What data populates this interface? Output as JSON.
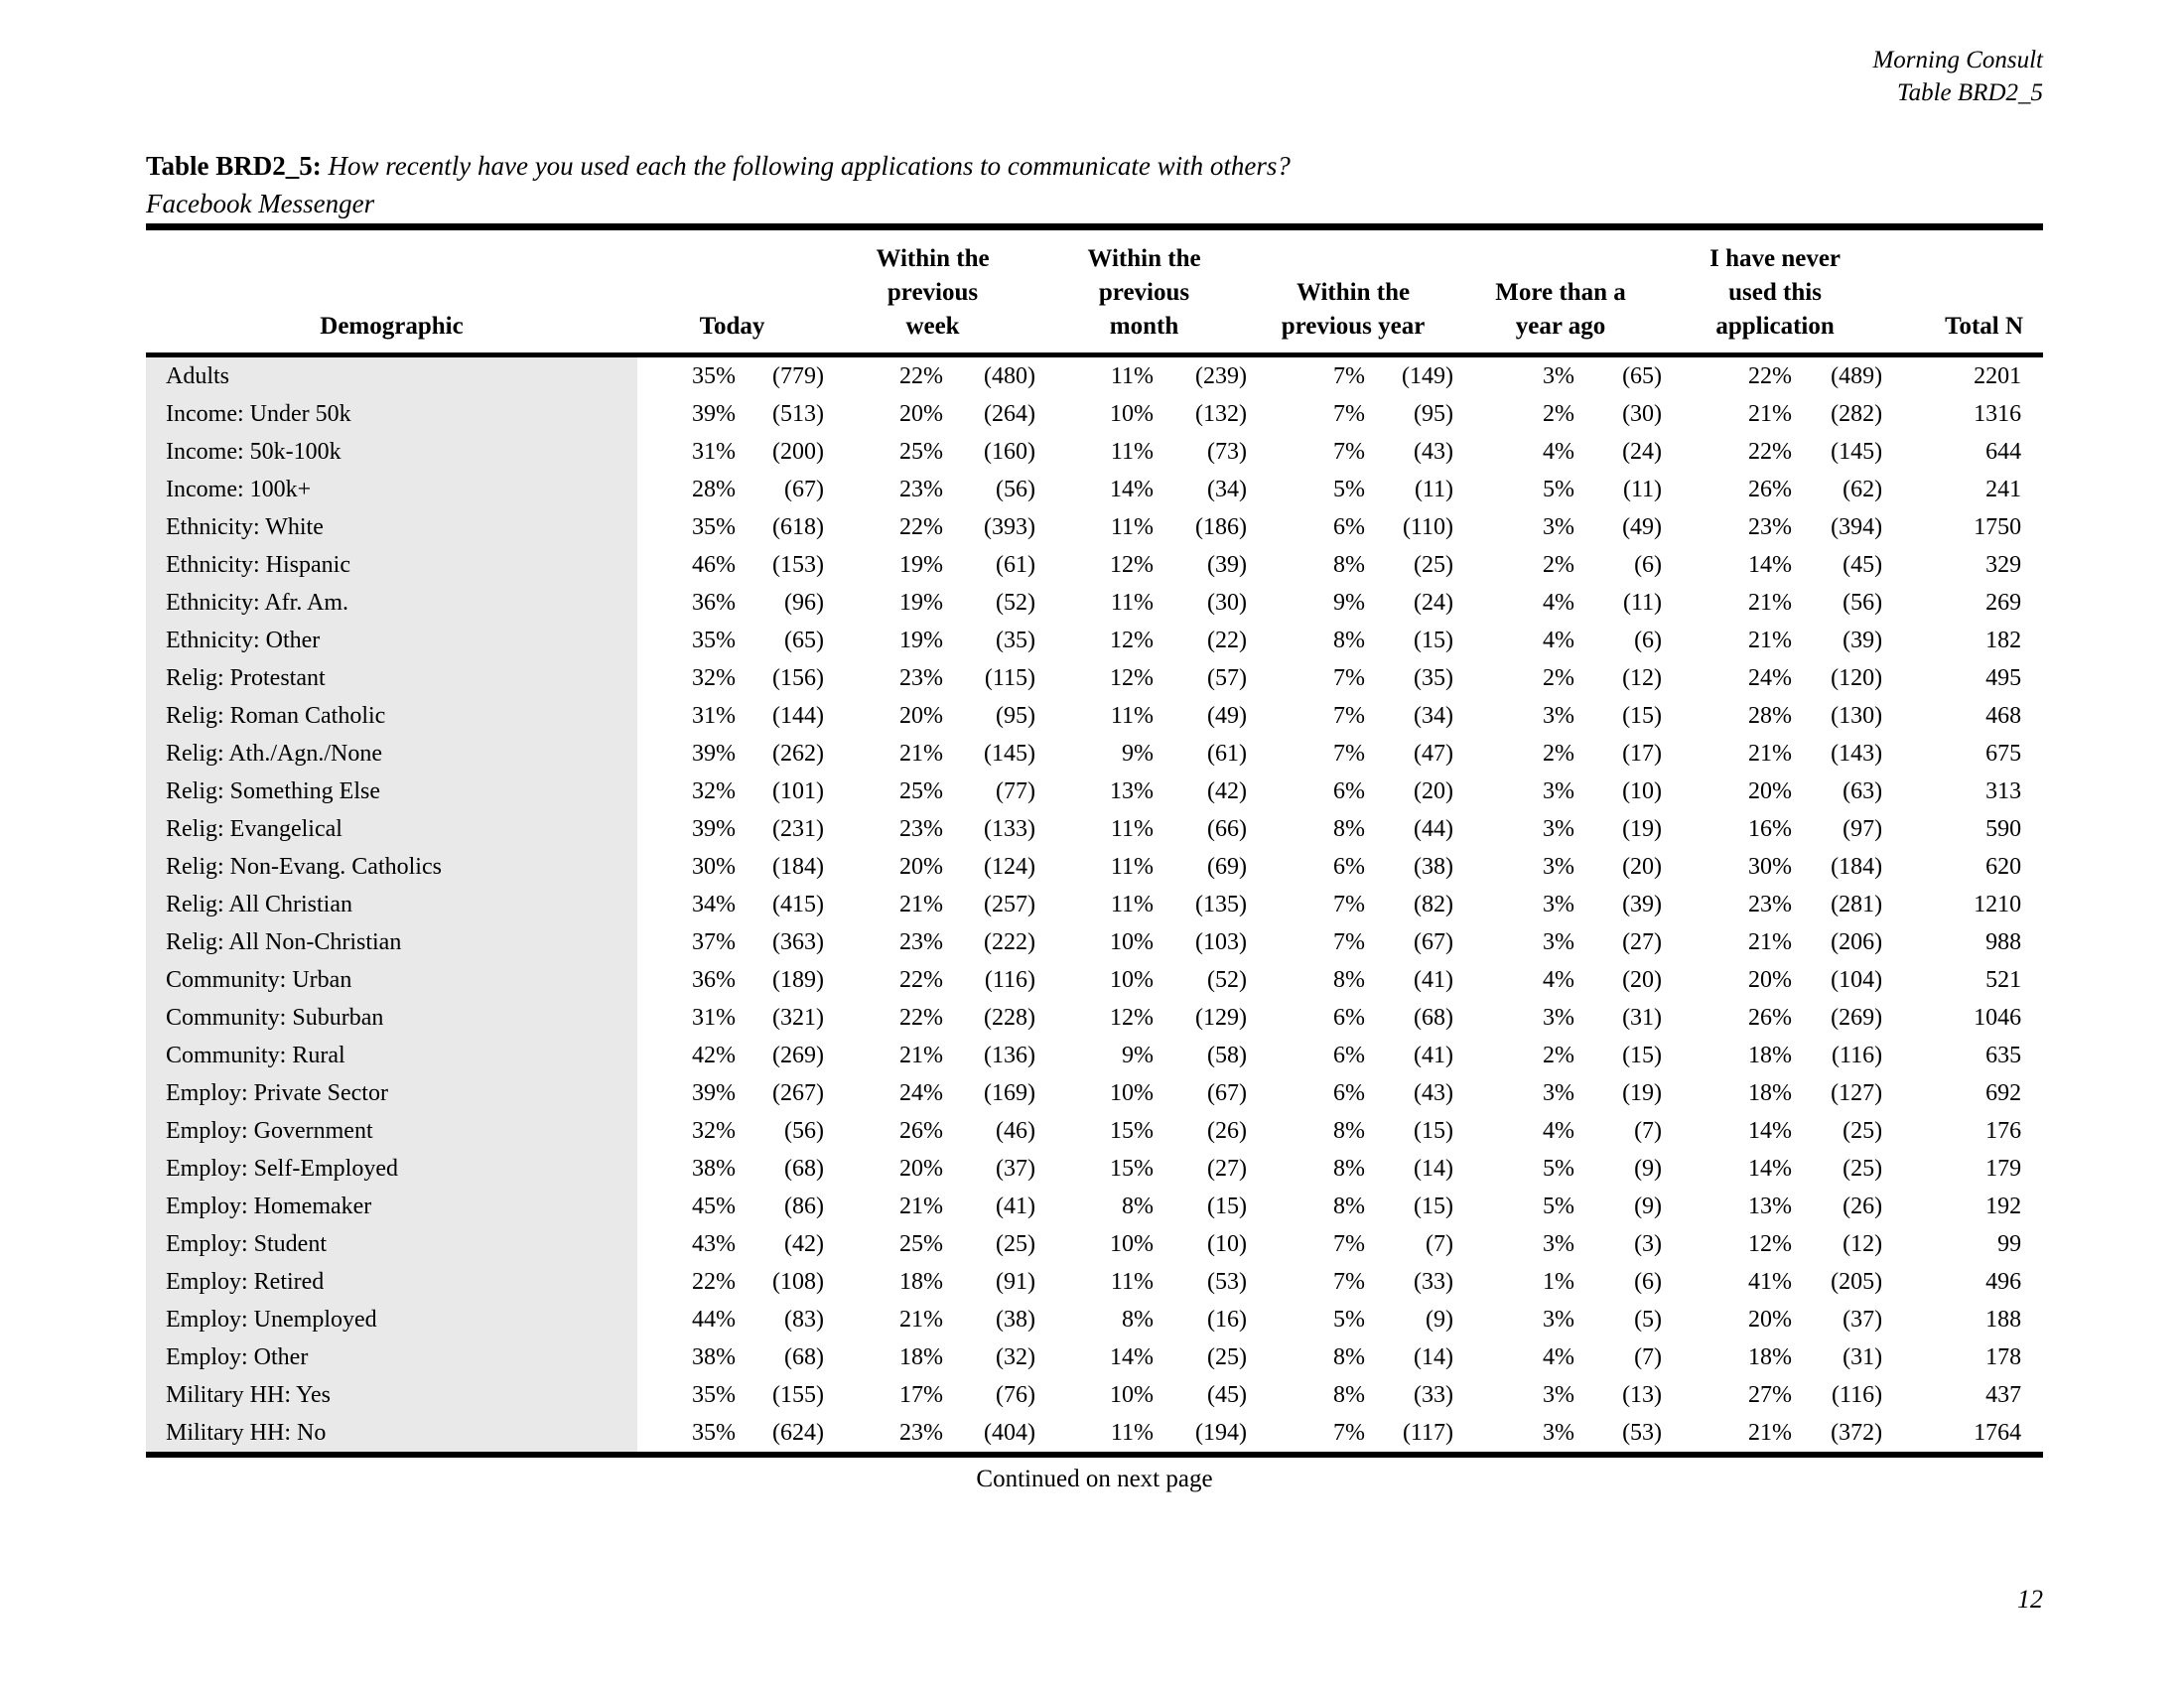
{
  "page": {
    "publisher": "Morning Consult",
    "table_ref": "Table BRD2_5",
    "title_prefix": "Table BRD2_5:",
    "title_question": "How recently have you used each the following applications to communicate with others?",
    "title_subject": "Facebook Messenger",
    "continued_note": "Continued on next page",
    "page_number": "12"
  },
  "colors": {
    "stripe": "#e9e9e9",
    "rule": "#000000",
    "text": "#000000"
  },
  "table": {
    "header": {
      "demographic": "Demographic",
      "today": "Today",
      "week": "Within the\nprevious\nweek",
      "month": "Within the\nprevious\nmonth",
      "year": "Within the\nprevious year",
      "more": "More than a\nyear ago",
      "never": "I have never\nused this\napplication",
      "total": "Total N"
    },
    "rows": [
      {
        "label": "Adults",
        "values": [
          "35%",
          "(779)",
          "22%",
          "(480)",
          "11%",
          "(239)",
          "7%",
          "(149)",
          "3%",
          "(65)",
          "22%",
          "(489)",
          "2201"
        ]
      },
      {
        "label": "Income: Under 50k",
        "values": [
          "39%",
          "(513)",
          "20%",
          "(264)",
          "10%",
          "(132)",
          "7%",
          "(95)",
          "2%",
          "(30)",
          "21%",
          "(282)",
          "1316"
        ]
      },
      {
        "label": "Income: 50k-100k",
        "values": [
          "31%",
          "(200)",
          "25%",
          "(160)",
          "11%",
          "(73)",
          "7%",
          "(43)",
          "4%",
          "(24)",
          "22%",
          "(145)",
          "644"
        ]
      },
      {
        "label": "Income: 100k+",
        "values": [
          "28%",
          "(67)",
          "23%",
          "(56)",
          "14%",
          "(34)",
          "5%",
          "(11)",
          "5%",
          "(11)",
          "26%",
          "(62)",
          "241"
        ]
      },
      {
        "label": "Ethnicity: White",
        "values": [
          "35%",
          "(618)",
          "22%",
          "(393)",
          "11%",
          "(186)",
          "6%",
          "(110)",
          "3%",
          "(49)",
          "23%",
          "(394)",
          "1750"
        ]
      },
      {
        "label": "Ethnicity: Hispanic",
        "values": [
          "46%",
          "(153)",
          "19%",
          "(61)",
          "12%",
          "(39)",
          "8%",
          "(25)",
          "2%",
          "(6)",
          "14%",
          "(45)",
          "329"
        ]
      },
      {
        "label": "Ethnicity: Afr. Am.",
        "values": [
          "36%",
          "(96)",
          "19%",
          "(52)",
          "11%",
          "(30)",
          "9%",
          "(24)",
          "4%",
          "(11)",
          "21%",
          "(56)",
          "269"
        ]
      },
      {
        "label": "Ethnicity: Other",
        "values": [
          "35%",
          "(65)",
          "19%",
          "(35)",
          "12%",
          "(22)",
          "8%",
          "(15)",
          "4%",
          "(6)",
          "21%",
          "(39)",
          "182"
        ]
      },
      {
        "label": "Relig: Protestant",
        "values": [
          "32%",
          "(156)",
          "23%",
          "(115)",
          "12%",
          "(57)",
          "7%",
          "(35)",
          "2%",
          "(12)",
          "24%",
          "(120)",
          "495"
        ]
      },
      {
        "label": "Relig: Roman Catholic",
        "values": [
          "31%",
          "(144)",
          "20%",
          "(95)",
          "11%",
          "(49)",
          "7%",
          "(34)",
          "3%",
          "(15)",
          "28%",
          "(130)",
          "468"
        ]
      },
      {
        "label": "Relig: Ath./Agn./None",
        "values": [
          "39%",
          "(262)",
          "21%",
          "(145)",
          "9%",
          "(61)",
          "7%",
          "(47)",
          "2%",
          "(17)",
          "21%",
          "(143)",
          "675"
        ]
      },
      {
        "label": "Relig: Something Else",
        "values": [
          "32%",
          "(101)",
          "25%",
          "(77)",
          "13%",
          "(42)",
          "6%",
          "(20)",
          "3%",
          "(10)",
          "20%",
          "(63)",
          "313"
        ]
      },
      {
        "label": "Relig: Evangelical",
        "values": [
          "39%",
          "(231)",
          "23%",
          "(133)",
          "11%",
          "(66)",
          "8%",
          "(44)",
          "3%",
          "(19)",
          "16%",
          "(97)",
          "590"
        ]
      },
      {
        "label": "Relig: Non-Evang. Catholics",
        "values": [
          "30%",
          "(184)",
          "20%",
          "(124)",
          "11%",
          "(69)",
          "6%",
          "(38)",
          "3%",
          "(20)",
          "30%",
          "(184)",
          "620"
        ]
      },
      {
        "label": "Relig: All Christian",
        "values": [
          "34%",
          "(415)",
          "21%",
          "(257)",
          "11%",
          "(135)",
          "7%",
          "(82)",
          "3%",
          "(39)",
          "23%",
          "(281)",
          "1210"
        ]
      },
      {
        "label": "Relig: All Non-Christian",
        "values": [
          "37%",
          "(363)",
          "23%",
          "(222)",
          "10%",
          "(103)",
          "7%",
          "(67)",
          "3%",
          "(27)",
          "21%",
          "(206)",
          "988"
        ]
      },
      {
        "label": "Community: Urban",
        "values": [
          "36%",
          "(189)",
          "22%",
          "(116)",
          "10%",
          "(52)",
          "8%",
          "(41)",
          "4%",
          "(20)",
          "20%",
          "(104)",
          "521"
        ]
      },
      {
        "label": "Community: Suburban",
        "values": [
          "31%",
          "(321)",
          "22%",
          "(228)",
          "12%",
          "(129)",
          "6%",
          "(68)",
          "3%",
          "(31)",
          "26%",
          "(269)",
          "1046"
        ]
      },
      {
        "label": "Community: Rural",
        "values": [
          "42%",
          "(269)",
          "21%",
          "(136)",
          "9%",
          "(58)",
          "6%",
          "(41)",
          "2%",
          "(15)",
          "18%",
          "(116)",
          "635"
        ]
      },
      {
        "label": "Employ: Private Sector",
        "values": [
          "39%",
          "(267)",
          "24%",
          "(169)",
          "10%",
          "(67)",
          "6%",
          "(43)",
          "3%",
          "(19)",
          "18%",
          "(127)",
          "692"
        ]
      },
      {
        "label": "Employ: Government",
        "values": [
          "32%",
          "(56)",
          "26%",
          "(46)",
          "15%",
          "(26)",
          "8%",
          "(15)",
          "4%",
          "(7)",
          "14%",
          "(25)",
          "176"
        ]
      },
      {
        "label": "Employ: Self-Employed",
        "values": [
          "38%",
          "(68)",
          "20%",
          "(37)",
          "15%",
          "(27)",
          "8%",
          "(14)",
          "5%",
          "(9)",
          "14%",
          "(25)",
          "179"
        ]
      },
      {
        "label": "Employ: Homemaker",
        "values": [
          "45%",
          "(86)",
          "21%",
          "(41)",
          "8%",
          "(15)",
          "8%",
          "(15)",
          "5%",
          "(9)",
          "13%",
          "(26)",
          "192"
        ]
      },
      {
        "label": "Employ: Student",
        "values": [
          "43%",
          "(42)",
          "25%",
          "(25)",
          "10%",
          "(10)",
          "7%",
          "(7)",
          "3%",
          "(3)",
          "12%",
          "(12)",
          "99"
        ]
      },
      {
        "label": "Employ: Retired",
        "values": [
          "22%",
          "(108)",
          "18%",
          "(91)",
          "11%",
          "(53)",
          "7%",
          "(33)",
          "1%",
          "(6)",
          "41%",
          "(205)",
          "496"
        ]
      },
      {
        "label": "Employ: Unemployed",
        "values": [
          "44%",
          "(83)",
          "21%",
          "(38)",
          "8%",
          "(16)",
          "5%",
          "(9)",
          "3%",
          "(5)",
          "20%",
          "(37)",
          "188"
        ]
      },
      {
        "label": "Employ: Other",
        "values": [
          "38%",
          "(68)",
          "18%",
          "(32)",
          "14%",
          "(25)",
          "8%",
          "(14)",
          "4%",
          "(7)",
          "18%",
          "(31)",
          "178"
        ]
      },
      {
        "label": "Military HH: Yes",
        "values": [
          "35%",
          "(155)",
          "17%",
          "(76)",
          "10%",
          "(45)",
          "8%",
          "(33)",
          "3%",
          "(13)",
          "27%",
          "(116)",
          "437"
        ]
      },
      {
        "label": "Military HH: No",
        "values": [
          "35%",
          "(624)",
          "23%",
          "(404)",
          "11%",
          "(194)",
          "7%",
          "(117)",
          "3%",
          "(53)",
          "21%",
          "(372)",
          "1764"
        ]
      }
    ]
  }
}
